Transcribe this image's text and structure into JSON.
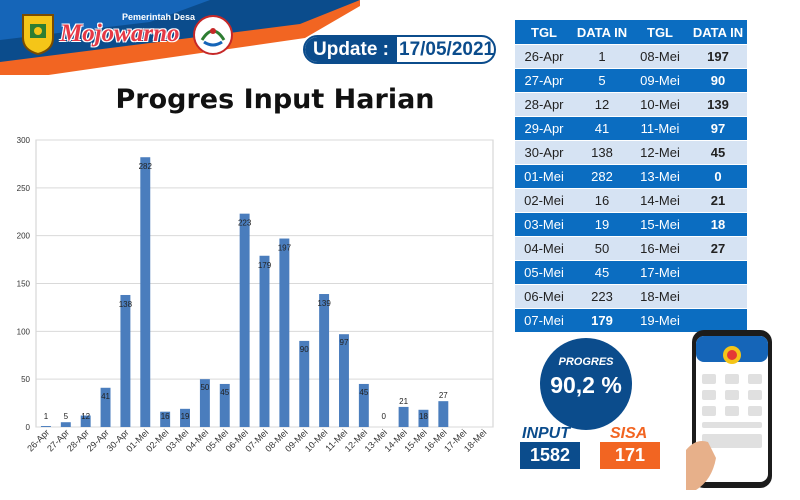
{
  "header": {
    "brand_subtitle": "Pemerintah Desa",
    "brand_name": "Mojowarno",
    "update_label": "Update :",
    "update_date": "17/05/2021"
  },
  "colors": {
    "accent_blue": "#0b6dc1",
    "dark_blue": "#0b4c8c",
    "orange": "#f26522",
    "bar": "#4a7dbd",
    "row_light": "#d6e3f3"
  },
  "chart_title": "Progres Input Harian",
  "chart_data": {
    "type": "bar",
    "title": "Progres Input Harian",
    "categories": [
      "26-Apr",
      "27-Apr",
      "28-Apr",
      "29-Apr",
      "30-Apr",
      "01-Mei",
      "02-Mei",
      "03-Mei",
      "04-Mei",
      "05-Mei",
      "06-Mei",
      "07-Mei",
      "08-Mei",
      "09-Mei",
      "10-Mei",
      "11-Mei",
      "12-Mei",
      "13-Mei",
      "14-Mei",
      "15-Mei",
      "16-Mei",
      "17-Mei",
      "18-Mei"
    ],
    "values": [
      1,
      5,
      12,
      41,
      138,
      282,
      16,
      19,
      50,
      45,
      223,
      179,
      197,
      90,
      139,
      97,
      45,
      0,
      21,
      18,
      27,
      null,
      null
    ],
    "value_labels": [
      "1",
      "5",
      "12",
      "41",
      "138",
      "282",
      "16",
      "19",
      "50",
      "45",
      "223",
      "179",
      "197",
      "90",
      "139",
      "97",
      "45",
      "0",
      "21",
      "18",
      "27",
      "",
      ""
    ],
    "yticks": [
      0,
      50,
      100,
      150,
      200,
      250,
      300
    ],
    "ylim": [
      0,
      300
    ],
    "grid": true,
    "xlabel": "",
    "ylabel": ""
  },
  "table": {
    "headers": [
      "TGL",
      "DATA IN",
      "TGL",
      "DATA IN"
    ],
    "rows": [
      [
        "26-Apr",
        "1",
        "08-Mei",
        "197"
      ],
      [
        "27-Apr",
        "5",
        "09-Mei",
        "90"
      ],
      [
        "28-Apr",
        "12",
        "10-Mei",
        "139"
      ],
      [
        "29-Apr",
        "41",
        "11-Mei",
        "97"
      ],
      [
        "30-Apr",
        "138",
        "12-Mei",
        "45"
      ],
      [
        "01-Mei",
        "282",
        "13-Mei",
        "0"
      ],
      [
        "02-Mei",
        "16",
        "14-Mei",
        "21"
      ],
      [
        "03-Mei",
        "19",
        "15-Mei",
        "18"
      ],
      [
        "04-Mei",
        "50",
        "16-Mei",
        "27"
      ],
      [
        "05-Mei",
        "45",
        "17-Mei",
        ""
      ],
      [
        "06-Mei",
        "223",
        "18-Mei",
        ""
      ],
      [
        "07-Mei",
        "179",
        "19-Mei",
        ""
      ]
    ]
  },
  "progress": {
    "label": "PROGRES",
    "value": "90,2 %"
  },
  "stats": {
    "input_label": "INPUT",
    "input_value": "1582",
    "sisa_label": "SISA",
    "sisa_value": "171"
  }
}
